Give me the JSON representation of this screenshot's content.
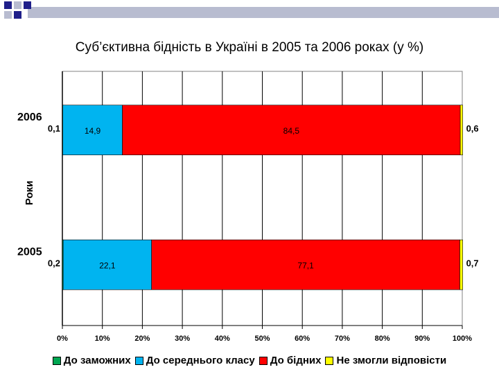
{
  "chart_data": {
    "type": "bar",
    "orientation": "horizontal",
    "stacked": true,
    "title": "Суб’єктивна бідність в Україні в 2005 та 2006 роках (у %)",
    "ylabel": "Роки",
    "xlabel": "",
    "categories": [
      "2006",
      "2005"
    ],
    "series": [
      {
        "name": "До заможних",
        "color": "#00a651",
        "values": [
          0.1,
          0.2
        ],
        "labels": [
          "0,1",
          "0,2"
        ],
        "label_position": "outside-left"
      },
      {
        "name": "До середнього класу",
        "color": "#00b4f0",
        "values": [
          14.9,
          22.1
        ],
        "labels": [
          "14,9",
          "22,1"
        ],
        "label_position": "inside"
      },
      {
        "name": "До бідних",
        "color": "#ff0000",
        "values": [
          84.5,
          77.1
        ],
        "labels": [
          "84,5",
          "77,1"
        ],
        "label_position": "inside"
      },
      {
        "name": "Не змогли відповісти",
        "color": "#ffff00",
        "values": [
          0.6,
          0.7
        ],
        "labels": [
          "0,6",
          "0,7"
        ],
        "label_position": "outside-right"
      }
    ],
    "xlim": [
      0,
      100
    ],
    "xticks": [
      0,
      10,
      20,
      30,
      40,
      50,
      60,
      70,
      80,
      90,
      100
    ],
    "xtick_labels": [
      "0%",
      "10%",
      "20%",
      "30%",
      "40%",
      "50%",
      "60%",
      "70%",
      "80%",
      "90%",
      "100%"
    ],
    "grid": "vertical",
    "legend_position": "bottom"
  },
  "decor": {
    "square_color": "#1f1f8a",
    "stripe_color": "#b8bcd0"
  }
}
